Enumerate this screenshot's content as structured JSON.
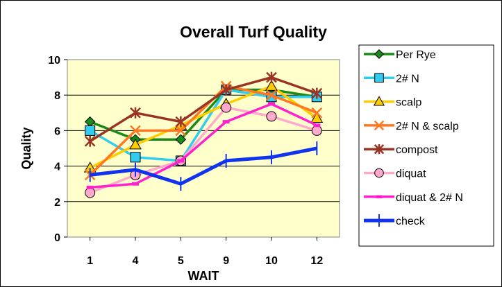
{
  "chart_data": {
    "type": "line",
    "title": "Overall Turf Quality",
    "xlabel": "WAIT",
    "ylabel": "Quality",
    "categories": [
      "1",
      "4",
      "5",
      "9",
      "10",
      "12"
    ],
    "ylim": [
      0,
      10
    ],
    "yticks": [
      "0",
      "2",
      "4",
      "6",
      "8",
      "10"
    ],
    "grid": true,
    "legend": "right",
    "plot_background": "#ffffcc",
    "series": [
      {
        "name": "Per Rye",
        "values": [
          6.5,
          5.5,
          5.5,
          8.3,
          8.3,
          7.9
        ],
        "color": "#1a8a1a",
        "marker": "diamond"
      },
      {
        "name": "2# N",
        "values": [
          6.0,
          4.5,
          4.3,
          8.3,
          7.9,
          7.9
        ],
        "color": "#33ccee",
        "marker": "square"
      },
      {
        "name": "scalp",
        "values": [
          3.9,
          5.2,
          6.3,
          7.5,
          8.5,
          6.7
        ],
        "color": "#ffcc00",
        "marker": "triangle"
      },
      {
        "name": "2# N & scalp",
        "values": [
          3.5,
          6.0,
          6.0,
          8.5,
          8.0,
          7.0
        ],
        "color": "#ff7722",
        "marker": "x"
      },
      {
        "name": "compost",
        "values": [
          5.4,
          7.0,
          6.5,
          8.3,
          9.0,
          8.1
        ],
        "color": "#993322",
        "marker": "star"
      },
      {
        "name": "diquat",
        "values": [
          2.5,
          3.5,
          4.3,
          7.3,
          6.8,
          6.0
        ],
        "color": "#ffaacc",
        "marker": "circle"
      },
      {
        "name": "diquat & 2# N",
        "values": [
          2.8,
          3.0,
          4.3,
          6.5,
          7.5,
          6.3
        ],
        "color": "#ff22cc",
        "marker": "dash"
      },
      {
        "name": "check",
        "values": [
          3.5,
          3.8,
          3.0,
          4.3,
          4.5,
          5.0
        ],
        "color": "#1133ee",
        "marker": "plus"
      }
    ]
  }
}
